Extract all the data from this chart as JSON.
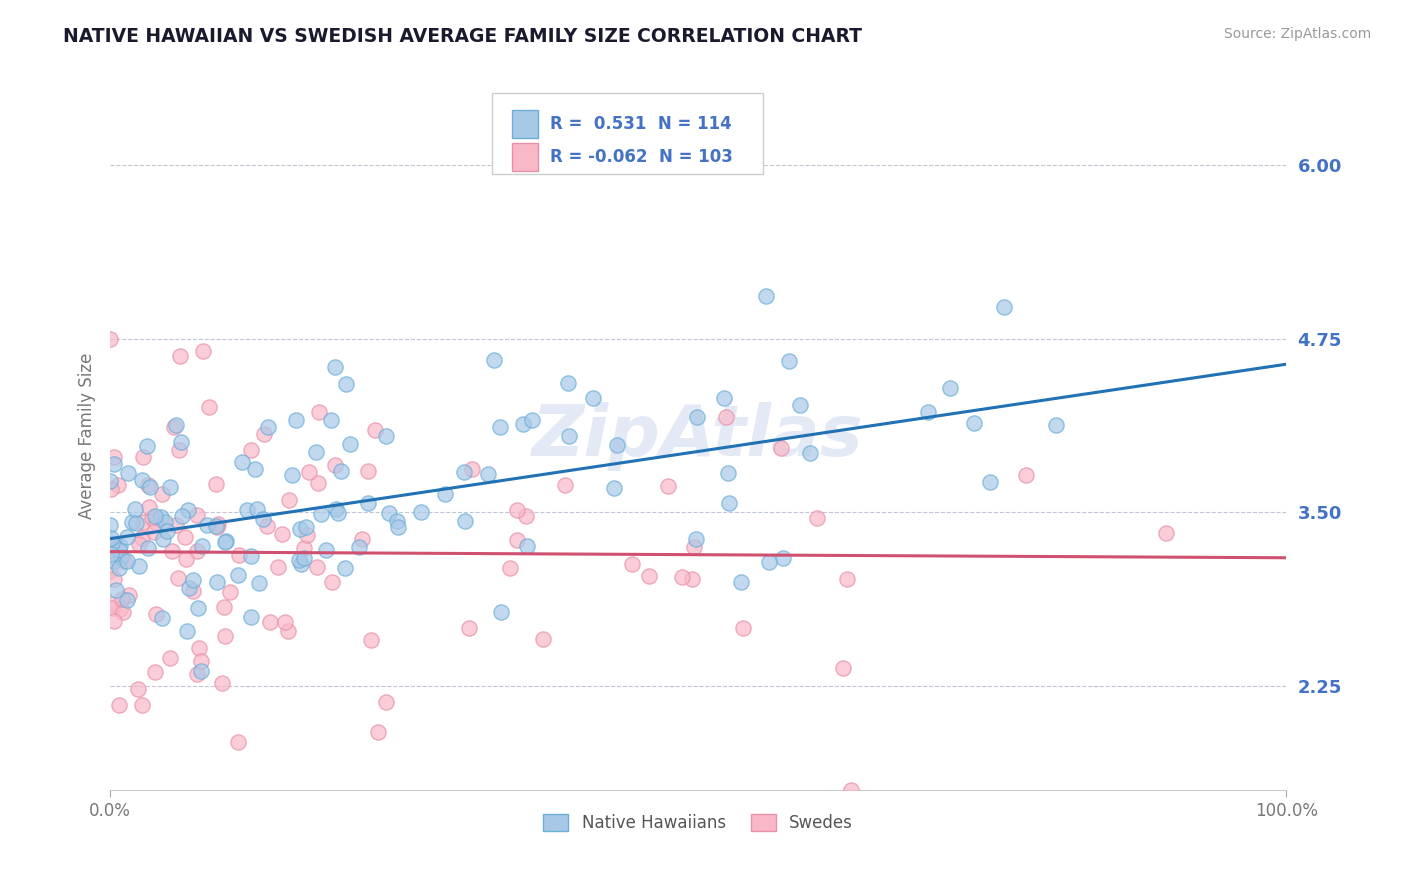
{
  "title": "NATIVE HAWAIIAN VS SWEDISH AVERAGE FAMILY SIZE CORRELATION CHART",
  "source": "Source: ZipAtlas.com",
  "ylabel": "Average Family Size",
  "xlim": [
    0,
    1
  ],
  "ylim": [
    1.5,
    6.6
  ],
  "yticks": [
    2.25,
    3.5,
    4.75,
    6.0
  ],
  "xticklabels": [
    "0.0%",
    "100.0%"
  ],
  "blue_face_color": "#a8c8e8",
  "blue_edge_color": "#6baed6",
  "blue_line_color": "#2171b5",
  "pink_face_color": "#f8b8c8",
  "pink_edge_color": "#e890a8",
  "pink_line_color": "#d05070",
  "blue_R": 0.531,
  "blue_N": 114,
  "pink_R": -0.062,
  "pink_N": 103,
  "legend_blue_label": "Native Hawaiians",
  "legend_pink_label": "Swedes",
  "background_color": "#ffffff",
  "grid_color": "#b0b8cc",
  "title_color": "#1a1a2e",
  "axis_tick_color": "#4472c4",
  "watermark": "ZipAtlas",
  "blue_seed": 42,
  "pink_seed": 7,
  "legend_text_color": "#4472c4",
  "ytick_format": [
    "2.25",
    "3.50",
    "4.75",
    "6.00"
  ]
}
